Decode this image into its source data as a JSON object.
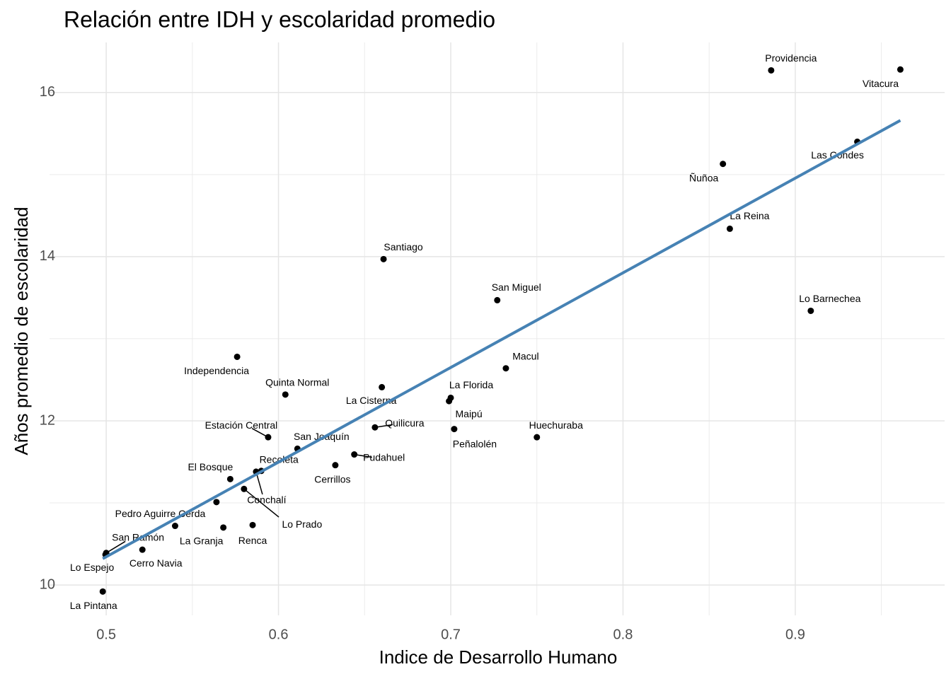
{
  "chart_data": {
    "type": "scatter",
    "title": "Relación entre IDH y escolaridad promedio",
    "x_label": "Indice de Desarrollo Humano",
    "y_label": "Años promedio de escolaridad",
    "labels": [
      "Providencia",
      "Vitacura",
      "Las Condes",
      "Ñuñoa",
      "La Reina",
      "Santiago",
      "San Miguel",
      "Lo Barnechea",
      "Independencia",
      "Macul",
      "La Cisterna",
      "Quinta Normal",
      "La Florida",
      "Maipú",
      "Peñalolén",
      "Quilicura",
      "Estación Central",
      "Huechuraba",
      "San Joaquín",
      "Pudahuel",
      "Cerrillos",
      "Recoleta",
      "Conchalí",
      "El Bosque",
      "Lo Prado",
      null,
      "Pedro Aguirre Cerda",
      "La Granja",
      "Renca",
      "San Ramón",
      "Cerro Navia",
      "Lo Espejo",
      "La Pintana"
    ],
    "x": [
      0.886,
      0.961,
      0.936,
      0.858,
      0.862,
      0.661,
      0.727,
      0.909,
      0.576,
      0.732,
      0.66,
      0.604,
      0.7,
      0.699,
      0.702,
      0.656,
      0.594,
      0.75,
      0.611,
      0.644,
      0.633,
      0.59,
      0.587,
      0.572,
      0.58,
      0.564,
      0.54,
      0.568,
      0.585,
      0.5,
      0.521,
      0.4996,
      0.498
    ],
    "y": [
      16.27,
      16.28,
      15.4,
      15.13,
      14.34,
      13.97,
      13.47,
      13.34,
      12.78,
      12.64,
      12.41,
      12.32,
      12.28,
      12.24,
      11.9,
      11.92,
      11.8,
      11.8,
      11.66,
      11.59,
      11.46,
      11.39,
      11.38,
      11.29,
      11.17,
      11.01,
      10.72,
      10.7,
      10.73,
      10.39,
      10.43,
      10.37,
      9.92
    ],
    "color": "#000000",
    "fit": {
      "x": [
        0.498,
        0.961
      ],
      "y": [
        10.32,
        15.66
      ],
      "color": "#4682b4"
    },
    "xlim": [
      0.4671,
      0.9867
    ],
    "ylim": [
      9.63,
      16.61
    ],
    "xticks": [
      0.5,
      0.6,
      0.7,
      0.8,
      0.9
    ],
    "yticks": [
      10,
      12,
      14,
      16
    ],
    "grid": true
  }
}
